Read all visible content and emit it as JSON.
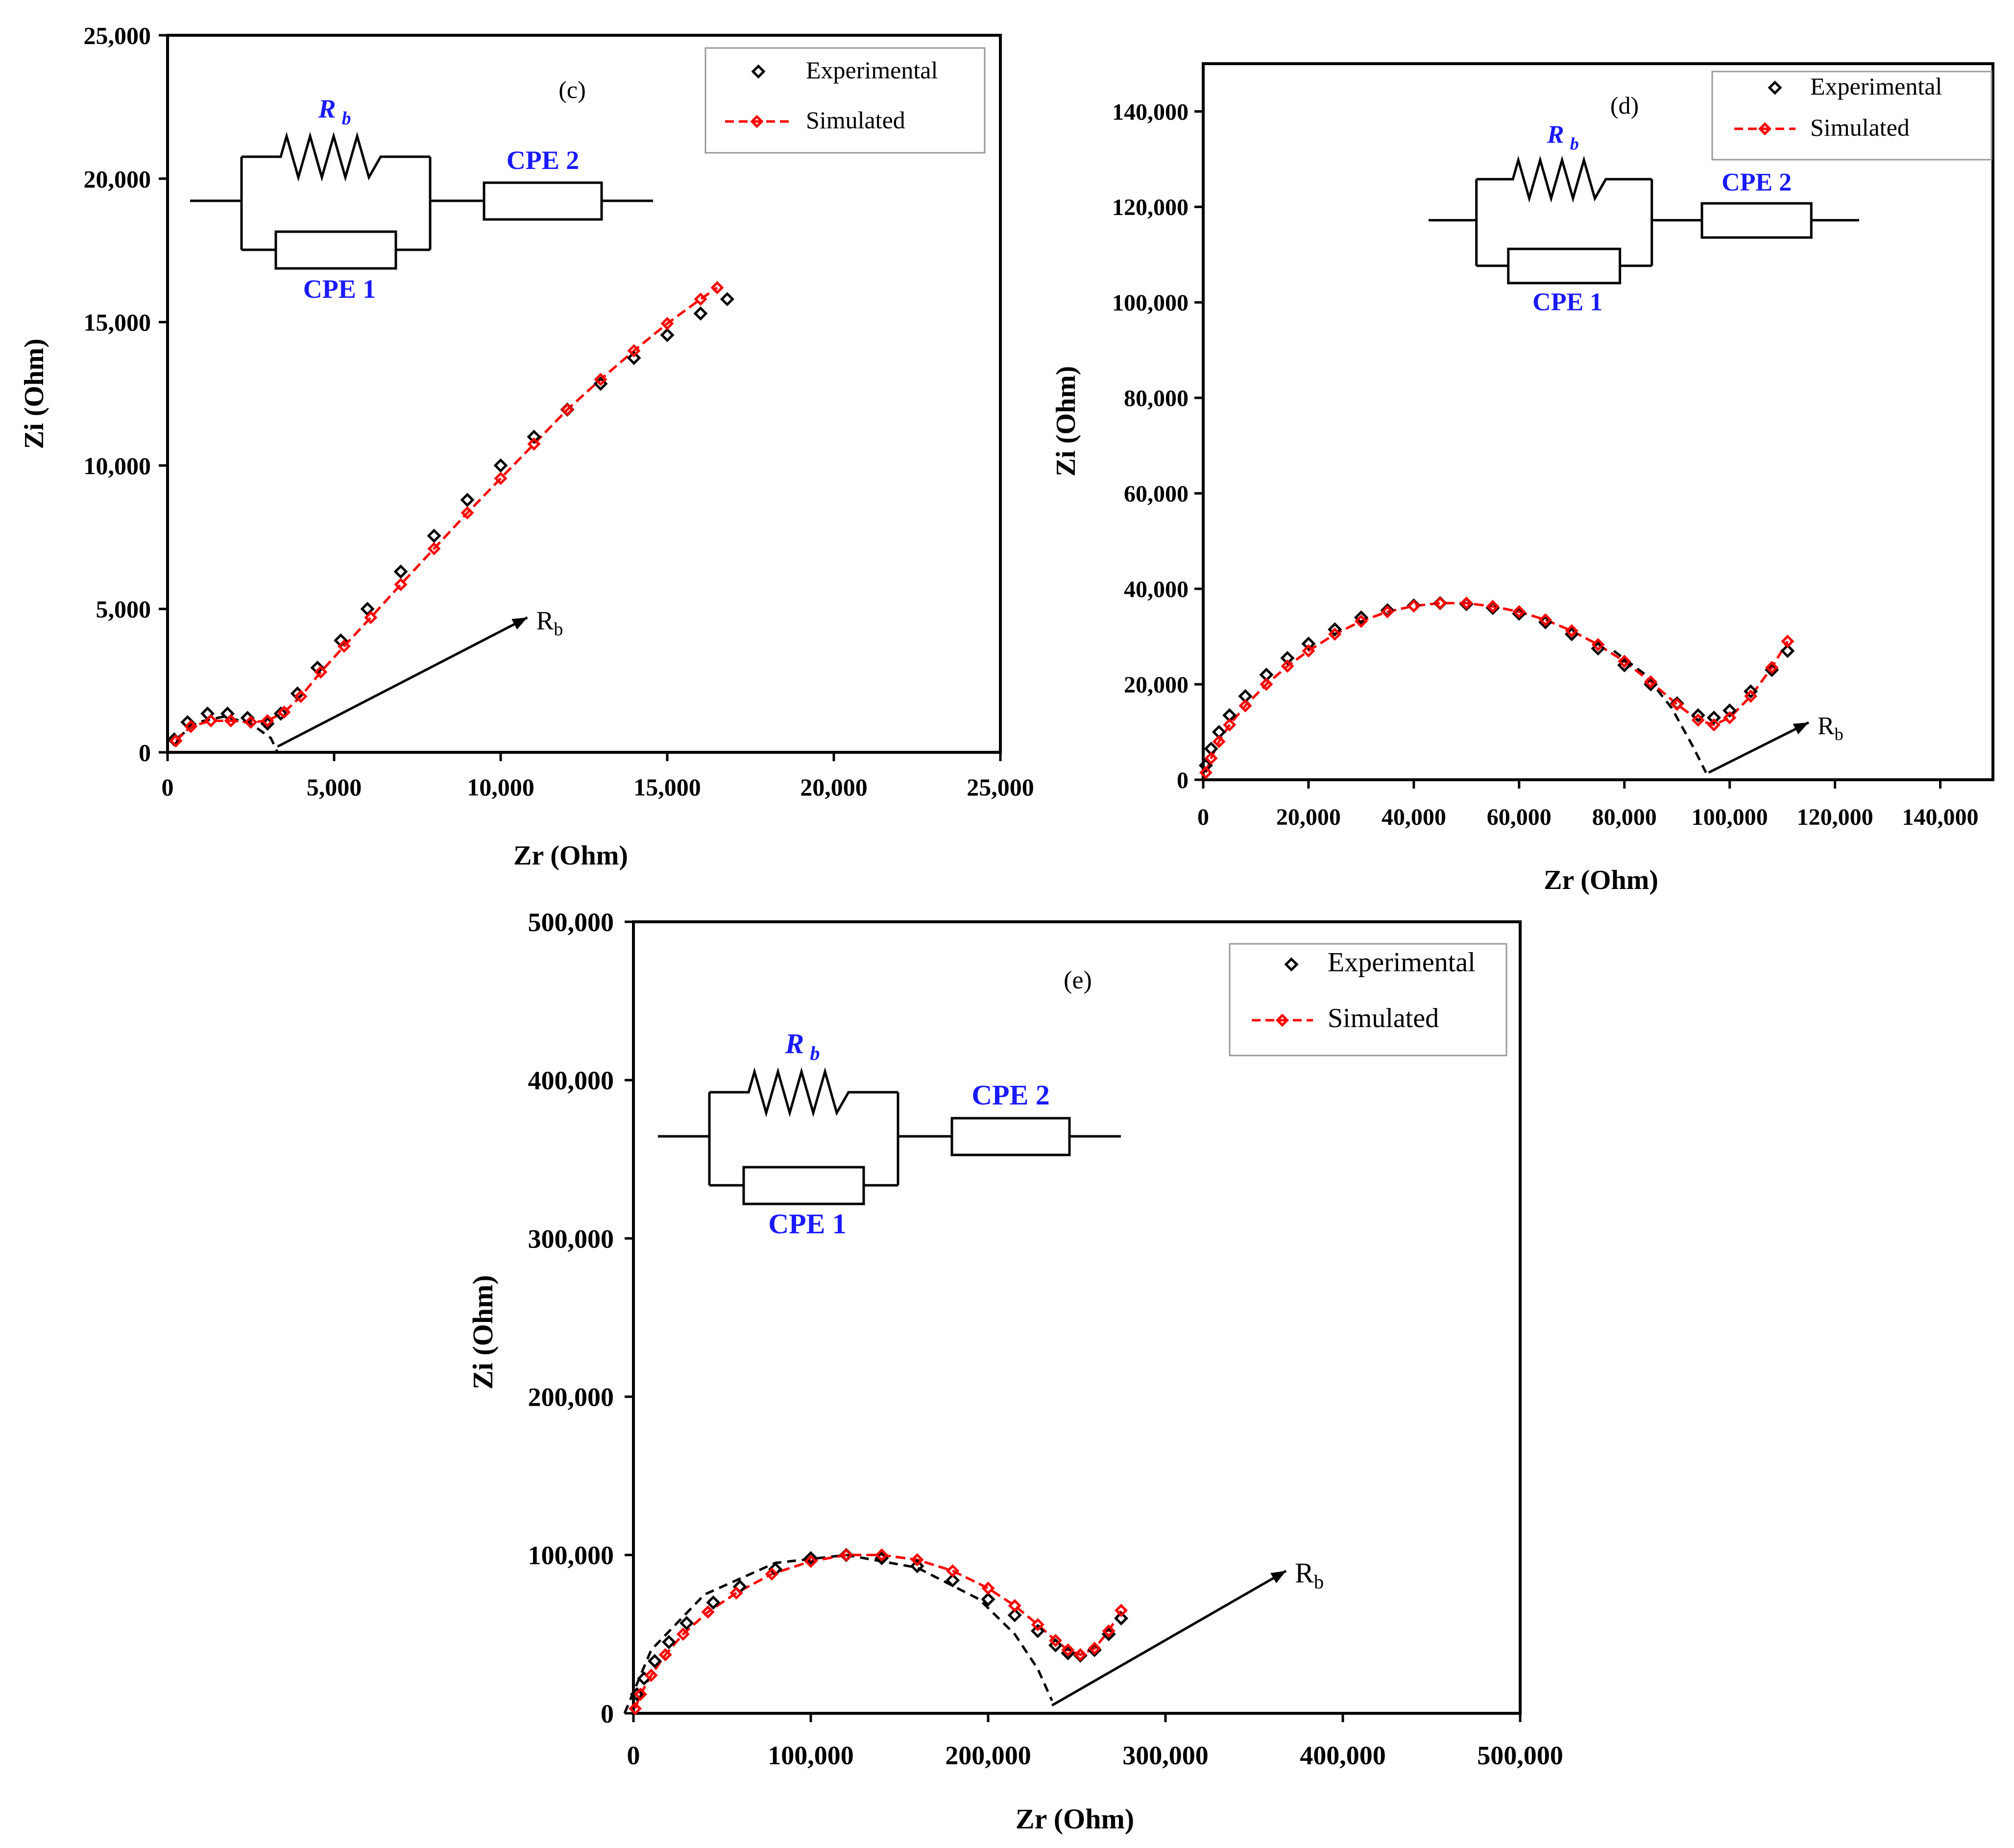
{
  "colors": {
    "experimental": "#000000",
    "simulated": "#ff0000",
    "circuit_text": "#1a1aff",
    "axis": "#000000"
  },
  "chart_data": [
    {
      "type": "scatter",
      "panel": "(c)",
      "xlabel": "Zr (Ohm)",
      "ylabel": "Zi (Ohm)",
      "xlim": [
        0,
        25000
      ],
      "ylim": [
        0,
        25000
      ],
      "x_ticks": [
        0,
        5000,
        10000,
        15000,
        20000,
        25000
      ],
      "y_ticks": [
        0,
        5000,
        10000,
        15000,
        20000,
        25000
      ],
      "x_tick_labels": [
        "0",
        "5,000",
        "10,000",
        "15,000",
        "20,000",
        "25,000"
      ],
      "y_tick_labels": [
        "0",
        "5,000",
        "10,000",
        "15,000",
        "20,000",
        "25,000"
      ],
      "legend": [
        "Experimental",
        "Simulated"
      ],
      "circuit": {
        "rb": "R",
        "rb_sub": "b",
        "cpe1": "CPE 1",
        "cpe2": "CPE 2"
      },
      "annotation": {
        "text": "R",
        "sub": "b",
        "arrow_from": [
          3300,
          200
        ],
        "arrow_to": [
          10800,
          4700
        ]
      },
      "dashed_fit": {
        "x": [
          300,
          900,
          1700,
          2500,
          3100,
          3300
        ],
        "y": [
          500,
          1050,
          1250,
          1000,
          500,
          0
        ]
      },
      "series": [
        {
          "name": "Experimental",
          "x": [
            200,
            600,
            1200,
            1800,
            2400,
            3000,
            3400,
            3900,
            4500,
            5200,
            6000,
            7000,
            8000,
            9000,
            10000,
            11000,
            12000,
            13000,
            14000,
            15000,
            16000,
            16800
          ],
          "y": [
            450,
            1050,
            1350,
            1350,
            1200,
            1000,
            1350,
            2050,
            2950,
            3900,
            5000,
            6300,
            7550,
            8800,
            10000,
            11000,
            11950,
            12850,
            13750,
            14550,
            15300,
            15800
          ]
        },
        {
          "name": "Simulated",
          "x": [
            250,
            700,
            1300,
            1900,
            2500,
            3000,
            3500,
            4000,
            4600,
            5300,
            6100,
            7000,
            8000,
            9000,
            10000,
            11000,
            12000,
            13000,
            14000,
            15000,
            16000,
            16500
          ],
          "y": [
            400,
            900,
            1100,
            1100,
            1050,
            1100,
            1400,
            1950,
            2800,
            3700,
            4700,
            5850,
            7100,
            8350,
            9550,
            10750,
            11950,
            13000,
            14000,
            14950,
            15800,
            16200
          ]
        }
      ]
    },
    {
      "type": "scatter",
      "panel": "(d)",
      "xlabel": "Zr (Ohm)",
      "ylabel": "Zi (Ohm)",
      "xlim": [
        0,
        150000
      ],
      "ylim": [
        0,
        150000
      ],
      "x_ticks": [
        0,
        20000,
        40000,
        60000,
        80000,
        100000,
        120000,
        140000
      ],
      "y_ticks": [
        0,
        20000,
        40000,
        60000,
        80000,
        100000,
        120000,
        140000
      ],
      "x_tick_labels": [
        "0",
        "20,000",
        "40,000",
        "60,000",
        "80,000",
        "100,000",
        "120,000",
        "140,000"
      ],
      "y_tick_labels": [
        "0",
        "20,000",
        "40,000",
        "60,000",
        "80,000",
        "100,000",
        "120,000",
        "140,000"
      ],
      "legend": [
        "Experimental",
        "Simulated"
      ],
      "circuit": {
        "rb": "R",
        "rb_sub": "b",
        "cpe1": "CPE 1",
        "cpe2": "CPE 2"
      },
      "annotation": {
        "text": "R",
        "sub": "b",
        "arrow_from": [
          96000,
          1500
        ],
        "arrow_to": [
          115000,
          12000
        ]
      },
      "dashed_fit": {
        "x": [
          78000,
          84000,
          89000,
          93000,
          95500
        ],
        "y": [
          27000,
          22000,
          15000,
          7000,
          1500
        ]
      },
      "series": [
        {
          "name": "Experimental",
          "x": [
            500,
            1500,
            3000,
            5000,
            8000,
            12000,
            16000,
            20000,
            25000,
            30000,
            35000,
            40000,
            45000,
            50000,
            55000,
            60000,
            65000,
            70000,
            75000,
            80000,
            85000,
            90000,
            94000,
            97000,
            100000,
            104000,
            108000,
            111000
          ],
          "y": [
            3000,
            6500,
            10000,
            13500,
            17500,
            22000,
            25500,
            28500,
            31500,
            34000,
            35500,
            36500,
            37000,
            36800,
            36000,
            34800,
            33000,
            30500,
            27500,
            24000,
            20000,
            16000,
            13500,
            13000,
            14500,
            18500,
            23000,
            27000
          ]
        },
        {
          "name": "Simulated",
          "x": [
            500,
            1500,
            3000,
            5000,
            8000,
            12000,
            16000,
            20000,
            25000,
            30000,
            35000,
            40000,
            45000,
            50000,
            55000,
            60000,
            65000,
            70000,
            75000,
            80000,
            85000,
            90000,
            94000,
            97000,
            100000,
            104000,
            108000,
            111000
          ],
          "y": [
            1500,
            4500,
            8000,
            11500,
            15500,
            20000,
            23800,
            27000,
            30500,
            33200,
            35200,
            36400,
            37000,
            37000,
            36300,
            35200,
            33500,
            31200,
            28300,
            24800,
            20500,
            15800,
            12500,
            11500,
            13000,
            17500,
            23500,
            29000
          ]
        }
      ]
    },
    {
      "type": "scatter",
      "panel": "(e)",
      "xlabel": "Zr (Ohm)",
      "ylabel": "Zi (Ohm)",
      "xlim": [
        0,
        500000
      ],
      "ylim": [
        0,
        500000
      ],
      "x_ticks": [
        0,
        100000,
        200000,
        300000,
        400000,
        500000
      ],
      "y_ticks": [
        0,
        100000,
        200000,
        300000,
        400000,
        500000
      ],
      "x_tick_labels": [
        "0",
        "100,000",
        "200,000",
        "300,000",
        "400,000",
        "500,000"
      ],
      "y_tick_labels": [
        "0",
        "100,000",
        "200,000",
        "300,000",
        "400,000",
        "500,000"
      ],
      "legend": [
        "Experimental",
        "Simulated"
      ],
      "circuit": {
        "rb": "R",
        "rb_sub": "b",
        "cpe1": "CPE 1",
        "cpe2": "CPE 2"
      },
      "annotation": {
        "text": "R",
        "sub": "b",
        "arrow_from": [
          236000,
          5000
        ],
        "arrow_to": [
          368000,
          90000
        ]
      },
      "dashed_fit": {
        "x": [
          -5000,
          10000,
          40000,
          80000,
          120000,
          160000,
          195000,
          215000,
          228000,
          236000
        ],
        "y": [
          0,
          40000,
          75000,
          95000,
          100000,
          92000,
          72000,
          50000,
          28000,
          8000
        ]
      },
      "series": [
        {
          "name": "Experimental",
          "x": [
            2000,
            6000,
            12000,
            20000,
            30000,
            45000,
            60000,
            80000,
            100000,
            120000,
            140000,
            160000,
            180000,
            200000,
            215000,
            228000,
            238000,
            245000,
            252000,
            260000,
            268000,
            275000
          ],
          "y": [
            12000,
            22000,
            33000,
            45000,
            57000,
            70000,
            80000,
            91000,
            98000,
            100000,
            98000,
            93000,
            84000,
            72000,
            62000,
            52000,
            43000,
            38000,
            36500,
            40000,
            50000,
            60000
          ]
        },
        {
          "name": "Simulated",
          "x": [
            1000,
            4000,
            10000,
            18000,
            28000,
            42000,
            58000,
            78000,
            100000,
            120000,
            140000,
            160000,
            180000,
            200000,
            215000,
            228000,
            238000,
            245000,
            252000,
            260000,
            268000,
            275000
          ],
          "y": [
            3000,
            12000,
            24000,
            37000,
            50000,
            64000,
            76000,
            88000,
            96000,
            100000,
            100000,
            97000,
            90000,
            79000,
            68000,
            56000,
            46000,
            40000,
            37000,
            41000,
            52000,
            65000
          ]
        }
      ]
    }
  ]
}
